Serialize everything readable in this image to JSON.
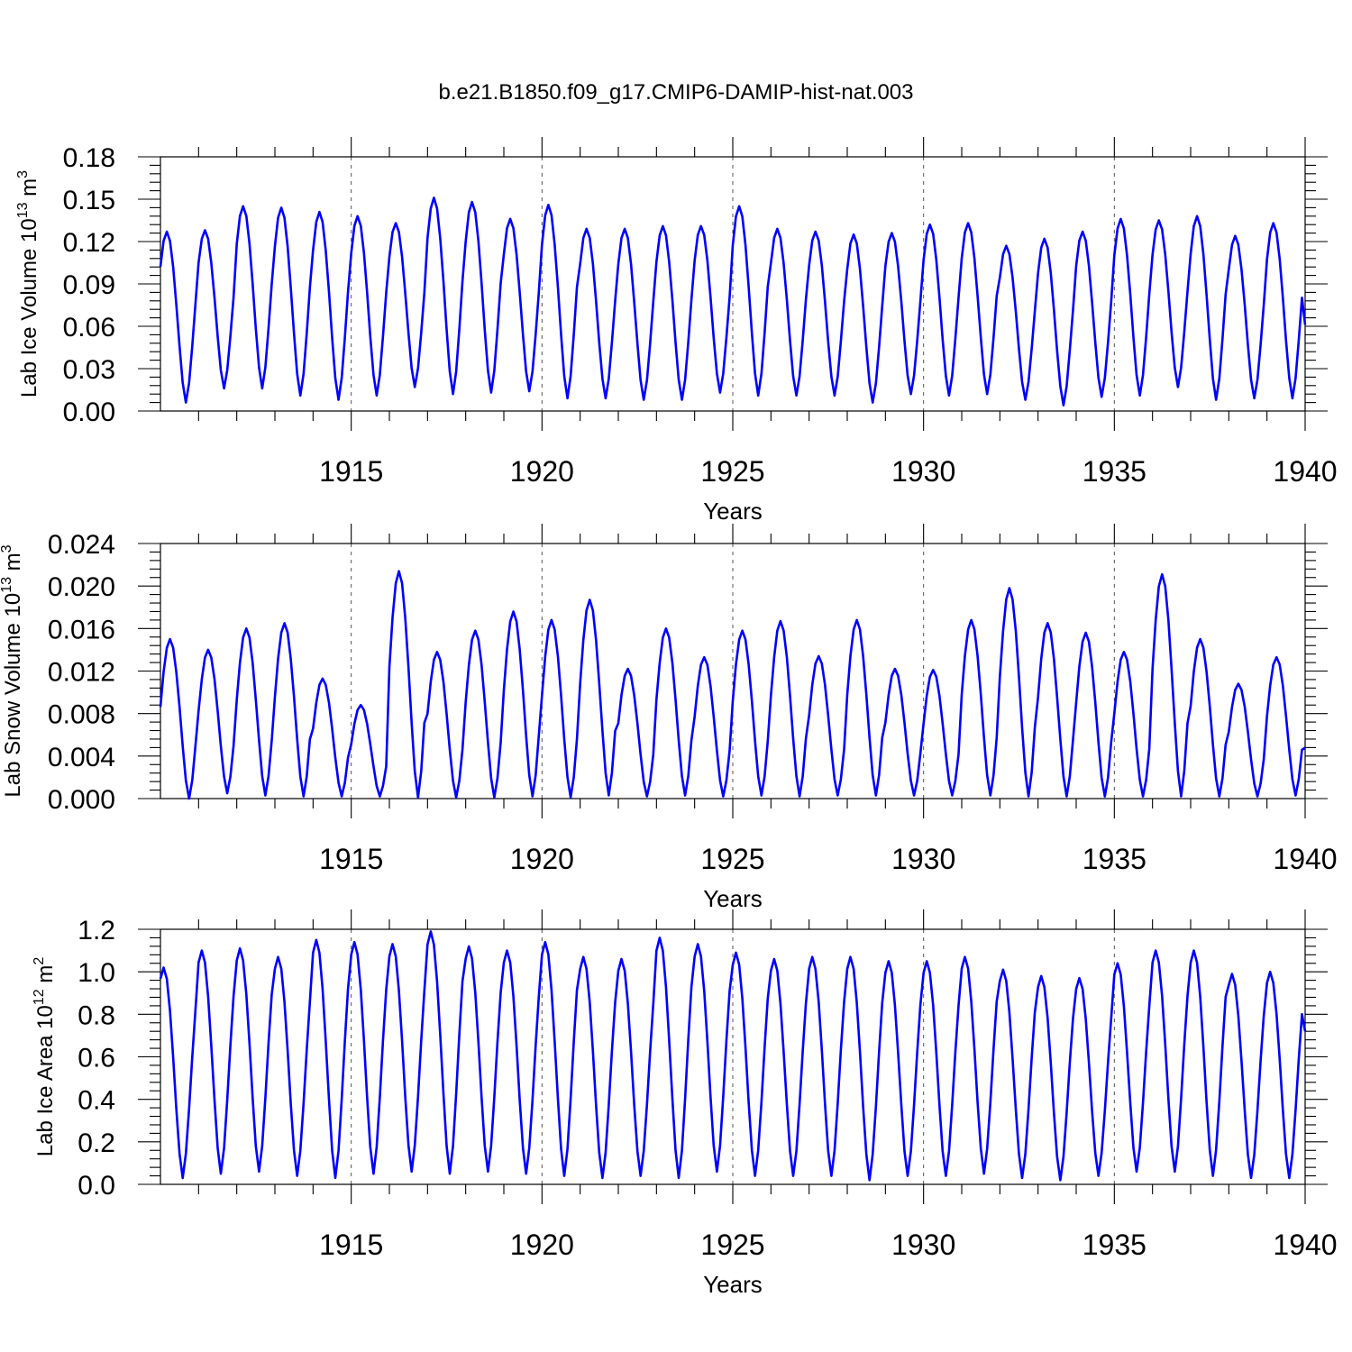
{
  "title": "b.e21.B1850.f09_g17.CMIP6-DAMIP-hist-nat.003",
  "colors": {
    "series": "#0000ff",
    "axes": "#000000"
  },
  "chart_data": [
    {
      "type": "line",
      "id": "ice-volume",
      "ylabel_main": "Lab Ice Volume 10",
      "ylabel_exp": "13",
      "ylabel_unit": " m",
      "ylabel_unit_exp": "3",
      "xlabel": "Years",
      "xlim": [
        1910,
        1940
      ],
      "ylim": [
        0,
        0.18
      ],
      "xticks": [
        "1915",
        "1920",
        "1925",
        "1930",
        "1935",
        "1940"
      ],
      "yticks": [
        "0.00",
        "0.03",
        "0.06",
        "0.09",
        "0.12",
        "0.15",
        "0.18"
      ],
      "grid_x": true,
      "seasonal": {
        "start_year": 1910,
        "end_year": 1940,
        "peak_month": 2,
        "trough_month": 8,
        "annual_max": [
          0.127,
          0.128,
          0.145,
          0.144,
          0.141,
          0.138,
          0.133,
          0.151,
          0.148,
          0.136,
          0.146,
          0.129,
          0.129,
          0.131,
          0.131,
          0.145,
          0.129,
          0.127,
          0.125,
          0.126,
          0.132,
          0.133,
          0.117,
          0.122,
          0.127,
          0.136,
          0.135,
          0.138,
          0.124,
          0.133
        ],
        "annual_min": [
          0.006,
          0.016,
          0.016,
          0.011,
          0.008,
          0.011,
          0.017,
          0.012,
          0.013,
          0.014,
          0.009,
          0.009,
          0.008,
          0.008,
          0.013,
          0.011,
          0.011,
          0.011,
          0.006,
          0.012,
          0.011,
          0.012,
          0.008,
          0.004,
          0.01,
          0.011,
          0.017,
          0.008,
          0.009,
          0.009
        ],
        "end_value": 0.061
      }
    },
    {
      "type": "line",
      "id": "snow-volume",
      "ylabel_main": "Lab Snow Volume 10",
      "ylabel_exp": "13",
      "ylabel_unit": " m",
      "ylabel_unit_exp": "3",
      "xlabel": "Years",
      "xlim": [
        1910,
        1940
      ],
      "ylim": [
        0,
        0.024
      ],
      "xticks": [
        "1915",
        "1920",
        "1925",
        "1930",
        "1935",
        "1940"
      ],
      "yticks": [
        "0.000",
        "0.004",
        "0.008",
        "0.012",
        "0.016",
        "0.020",
        "0.024"
      ],
      "grid_x": true,
      "seasonal": {
        "start_year": 1910,
        "end_year": 1940,
        "peak_month": 3,
        "trough_month": 9,
        "annual_max": [
          0.015,
          0.014,
          0.016,
          0.0165,
          0.0113,
          0.0088,
          0.0214,
          0.0138,
          0.0158,
          0.0176,
          0.0168,
          0.0187,
          0.0122,
          0.016,
          0.0133,
          0.0158,
          0.0167,
          0.0134,
          0.0168,
          0.0122,
          0.0121,
          0.0168,
          0.0198,
          0.0165,
          0.0156,
          0.0138,
          0.0211,
          0.015,
          0.0108,
          0.0133
        ],
        "annual_min": [
          0.0,
          0.0005,
          0.0003,
          0.0002,
          0.0002,
          0.0002,
          0.0001,
          0.0001,
          0.0001,
          0.0002,
          0.0001,
          0.0003,
          0.0002,
          0.0003,
          0.0002,
          0.0003,
          0.0002,
          0.0003,
          0.0003,
          0.0003,
          0.0003,
          0.0003,
          0.0002,
          0.0002,
          0.0002,
          0.0002,
          0.0002,
          0.0002,
          0.0002,
          0.0003
        ],
        "end_value": 0.0048
      }
    },
    {
      "type": "line",
      "id": "ice-area",
      "ylabel_main": "Lab Ice Area 10",
      "ylabel_exp": "12",
      "ylabel_unit": " m",
      "ylabel_unit_exp": "2",
      "xlabel": "Years",
      "xlim": [
        1910,
        1940
      ],
      "ylim": [
        0,
        1.2
      ],
      "xticks": [
        "1915",
        "1920",
        "1925",
        "1930",
        "1935",
        "1940"
      ],
      "yticks": [
        "0.0",
        "0.2",
        "0.4",
        "0.6",
        "0.8",
        "1.0",
        "1.2"
      ],
      "grid_x": true,
      "seasonal": {
        "start_year": 1910,
        "end_year": 1940,
        "peak_month": 1,
        "trough_month": 8,
        "annual_max": [
          1.02,
          1.1,
          1.11,
          1.07,
          1.15,
          1.14,
          1.13,
          1.19,
          1.12,
          1.1,
          1.14,
          1.07,
          1.06,
          1.16,
          1.13,
          1.09,
          1.06,
          1.07,
          1.07,
          1.05,
          1.05,
          1.07,
          1.01,
          0.98,
          0.97,
          1.04,
          1.1,
          1.1,
          0.99,
          1.0
        ],
        "annual_min": [
          0.03,
          0.05,
          0.06,
          0.04,
          0.03,
          0.05,
          0.06,
          0.05,
          0.06,
          0.05,
          0.04,
          0.03,
          0.04,
          0.03,
          0.06,
          0.04,
          0.04,
          0.04,
          0.02,
          0.04,
          0.04,
          0.05,
          0.03,
          0.02,
          0.04,
          0.06,
          0.06,
          0.04,
          0.03,
          0.03
        ],
        "end_value": 0.72
      }
    }
  ]
}
